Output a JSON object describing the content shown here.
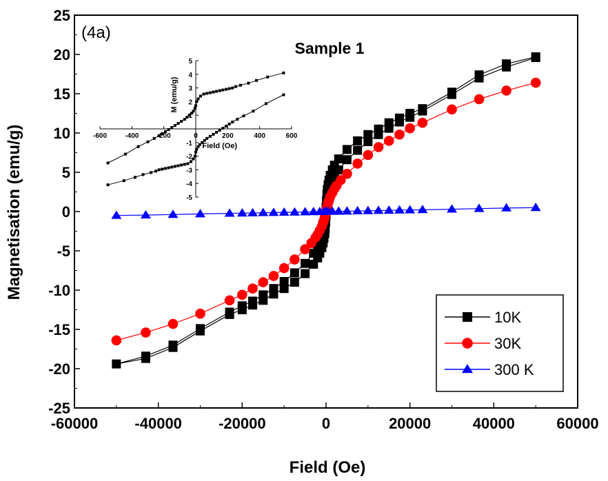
{
  "chart_data": {
    "type": "line",
    "title": "Sample 1",
    "annotation": "(4a)",
    "xlabel": "Field (Oe)",
    "ylabel": "Magnetisation (emu/g)",
    "xlim": [
      -60000,
      60000
    ],
    "ylim": [
      -25,
      25
    ],
    "xticks": [
      -60000,
      -40000,
      -20000,
      0,
      20000,
      40000,
      60000
    ],
    "yticks": [
      -25,
      -20,
      -15,
      -10,
      -5,
      0,
      5,
      10,
      15,
      20,
      25
    ],
    "grid": false,
    "legend_position": "bottom-right",
    "series": [
      {
        "name": "10K",
        "color": "#000000",
        "marker": "square",
        "x": [
          50000,
          43000,
          36500,
          30000,
          23000,
          20000,
          17500,
          15000,
          12500,
          10000,
          7500,
          5000,
          3000,
          2000,
          1500,
          1000,
          700,
          500,
          300,
          200,
          100,
          0,
          -100,
          -200,
          -300,
          -500,
          -700,
          -1000,
          -1500,
          -2000,
          -3000,
          -5000,
          -7500,
          -10000,
          -12500,
          -15000,
          -17500,
          -20000,
          -23000,
          -30000,
          -36500,
          -43000,
          -50000,
          -43000,
          -36500,
          -30000,
          -23000,
          -20000,
          -17500,
          -15000,
          -12500,
          -10000,
          -7500,
          -5000,
          -3000,
          -2000,
          -1500,
          -1000,
          -700,
          -500,
          -300,
          -200,
          -100,
          0,
          100,
          200,
          300,
          500,
          700,
          1000,
          1500,
          2000,
          3000,
          5000,
          7500,
          10000,
          12500,
          15000,
          17500,
          20000,
          23000,
          30000,
          36500,
          43000,
          50000
        ],
        "y": [
          19.7,
          18.8,
          17.4,
          15.2,
          13.1,
          12.5,
          11.9,
          11.3,
          10.5,
          9.8,
          9.0,
          7.9,
          6.7,
          5.9,
          5.3,
          4.6,
          4.0,
          3.4,
          2.8,
          2.2,
          1.4,
          0.5,
          -0.4,
          -1.2,
          -1.9,
          -2.6,
          -3.0,
          -3.4,
          -4.0,
          -4.5,
          -5.3,
          -6.6,
          -7.8,
          -8.9,
          -9.8,
          -10.6,
          -11.4,
          -12.0,
          -12.8,
          -14.9,
          -17.0,
          -18.4,
          -19.4,
          -18.7,
          -17.3,
          -15.2,
          -13.1,
          -12.5,
          -11.9,
          -11.3,
          -10.5,
          -9.8,
          -9.0,
          -7.9,
          -6.7,
          -5.9,
          -5.3,
          -4.6,
          -4.0,
          -3.4,
          -2.8,
          -2.2,
          -1.4,
          -0.5,
          0.4,
          1.2,
          1.9,
          2.6,
          3.0,
          3.4,
          4.0,
          4.5,
          5.3,
          6.6,
          7.8,
          8.9,
          9.8,
          10.6,
          11.4,
          12.0,
          12.8,
          14.9,
          17.0,
          18.4,
          19.6
        ]
      },
      {
        "name": "30K",
        "color": "#ff0000",
        "marker": "circle",
        "x": [
          50000,
          43000,
          36500,
          30000,
          23000,
          20000,
          17500,
          15000,
          12500,
          10000,
          7500,
          5000,
          3500,
          2500,
          2000,
          1500,
          1000,
          700,
          500,
          300,
          100,
          0,
          -100,
          -300,
          -500,
          -700,
          -1000,
          -1500,
          -2000,
          -2500,
          -3500,
          -5000,
          -7500,
          -10000,
          -12500,
          -15000,
          -17500,
          -20000,
          -23000,
          -30000,
          -36500,
          -43000,
          -50000
        ],
        "y": [
          16.4,
          15.4,
          14.3,
          13.0,
          11.3,
          10.6,
          9.8,
          9.0,
          8.2,
          7.2,
          6.1,
          4.8,
          4.0,
          3.3,
          2.9,
          2.4,
          1.9,
          1.4,
          1.1,
          0.7,
          0.3,
          0.0,
          -0.3,
          -0.7,
          -1.1,
          -1.4,
          -1.9,
          -2.4,
          -2.9,
          -3.3,
          -4.0,
          -4.8,
          -6.1,
          -7.2,
          -8.2,
          -9.0,
          -9.8,
          -10.6,
          -11.3,
          -13.0,
          -14.3,
          -15.4,
          -16.4
        ]
      },
      {
        "name": "300 K",
        "color": "#0000ff",
        "marker": "triangle",
        "x": [
          50000,
          43000,
          36500,
          30000,
          23000,
          20000,
          17500,
          15000,
          12500,
          10000,
          7500,
          5000,
          3000,
          1500,
          500,
          0,
          -500,
          -1500,
          -3000,
          -5000,
          -7500,
          -10000,
          -12500,
          -15000,
          -17500,
          -20000,
          -23000,
          -30000,
          -36500,
          -43000,
          -50000
        ],
        "y": [
          0.5,
          0.45,
          0.38,
          0.3,
          0.23,
          0.2,
          0.18,
          0.15,
          0.13,
          0.1,
          0.08,
          0.05,
          0.03,
          0.02,
          0.01,
          0.0,
          -0.01,
          -0.02,
          -0.03,
          -0.05,
          -0.08,
          -0.1,
          -0.13,
          -0.15,
          -0.18,
          -0.2,
          -0.23,
          -0.3,
          -0.38,
          -0.45,
          -0.5
        ]
      }
    ],
    "inset": {
      "xlabel": "Field (Oe)",
      "ylabel": "M (emu/g)",
      "xlim": [
        -600,
        600
      ],
      "ylim": [
        -5,
        5
      ],
      "xticks": [
        -600,
        -400,
        -200,
        0,
        200,
        400,
        600
      ],
      "yticks": [
        -5,
        -4,
        -3,
        -2,
        -1,
        0,
        1,
        2,
        3,
        4,
        5
      ],
      "series": [
        {
          "name": "inset-loop",
          "color": "#000000",
          "x": [
            550,
            450,
            380,
            330,
            280,
            250,
            230,
            210,
            190,
            170,
            150,
            130,
            110,
            90,
            70,
            50,
            30,
            15,
            5,
            0,
            -5,
            -15,
            -25,
            -40,
            -55,
            -70,
            -90,
            -110,
            -130,
            -150,
            -170,
            -190,
            -210,
            -230,
            -260,
            -300,
            -360,
            -440,
            -550
          ],
          "y": [
            4.1,
            3.8,
            3.55,
            3.35,
            3.2,
            3.1,
            3.0,
            2.95,
            2.9,
            2.85,
            2.8,
            2.75,
            2.7,
            2.65,
            2.6,
            2.55,
            2.4,
            2.2,
            2.0,
            1.7,
            1.5,
            1.3,
            1.15,
            1.0,
            0.85,
            0.7,
            0.55,
            0.4,
            0.25,
            0.1,
            -0.05,
            -0.2,
            -0.35,
            -0.5,
            -0.7,
            -0.95,
            -1.3,
            -1.85,
            -2.5
          ]
        },
        {
          "name": "inset-loop-lower",
          "color": "#000000",
          "x": [
            -550,
            -450,
            -380,
            -330,
            -280,
            -250,
            -230,
            -210,
            -190,
            -170,
            -150,
            -130,
            -110,
            -90,
            -70,
            -50,
            -30,
            -15,
            -5,
            0,
            5,
            15,
            25,
            40,
            55,
            70,
            90,
            110,
            130,
            150,
            170,
            190,
            210,
            230,
            260,
            300,
            360,
            440,
            550
          ],
          "y": [
            -4.1,
            -3.8,
            -3.55,
            -3.35,
            -3.2,
            -3.1,
            -3.0,
            -2.95,
            -2.9,
            -2.85,
            -2.8,
            -2.75,
            -2.7,
            -2.65,
            -2.6,
            -2.55,
            -2.4,
            -2.2,
            -2.0,
            -1.7,
            -1.5,
            -1.3,
            -1.15,
            -1.0,
            -0.85,
            -0.7,
            -0.55,
            -0.4,
            -0.25,
            -0.1,
            0.05,
            0.2,
            0.35,
            0.5,
            0.7,
            0.95,
            1.3,
            1.85,
            2.5
          ]
        }
      ]
    }
  }
}
